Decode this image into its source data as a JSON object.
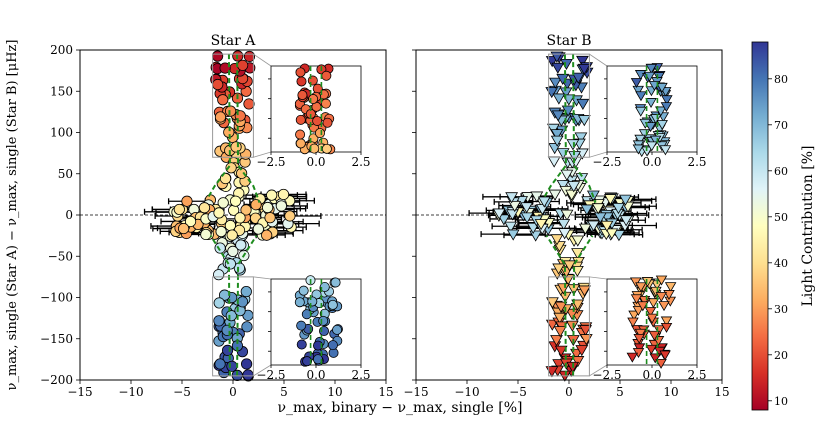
{
  "chart_data": [
    {
      "type": "scatter",
      "title": "Star A",
      "marker": "circle",
      "xlabel": "ν_max, binary − ν_max, single [%]",
      "ylabel": "ν_max, single (Star A) − ν_max, single (Star B) [μHz]",
      "xlim": [
        -15,
        15
      ],
      "ylim": [
        -200,
        200
      ],
      "xticks": [
        "−15",
        "−10",
        "−5",
        "0",
        "5",
        "10",
        "15"
      ],
      "yticks": [
        "200",
        "150",
        "100",
        "50",
        "0",
        "−50",
        "−100",
        "−150",
        "−200"
      ],
      "reference_line_y": 0,
      "columns": {
        "y_min": -195,
        "y_max": 195,
        "x_spread": 1.2,
        "light_at_top": 10,
        "light_at_bottom": 88
      },
      "horizontal_band": {
        "y_range": [
          -25,
          25
        ],
        "x_range": [
          -11,
          10.5
        ],
        "light_range": [
          30,
          55
        ]
      },
      "inset_top": {
        "y_range": [
          80,
          175
        ],
        "xlim": [
          -2.5,
          2.5
        ],
        "xticks": [
          "−2.5",
          "0.0",
          "2.5"
        ]
      },
      "inset_bottom": {
        "y_range": [
          -190,
          -80
        ],
        "xlim": [
          -2.5,
          2.5
        ],
        "xticks": [
          "−2.5",
          "0.0",
          "2.5"
        ]
      }
    },
    {
      "type": "scatter",
      "title": "Star B",
      "marker": "triangle-down",
      "xlabel": "ν_max, binary − ν_max, single [%]",
      "xlim": [
        -15,
        15
      ],
      "ylim": [
        -200,
        200
      ],
      "xticks": [
        "−15",
        "−10",
        "−5",
        "0",
        "5",
        "10",
        "15"
      ],
      "reference_line_y": 0,
      "columns": {
        "y_min": -195,
        "y_max": 195,
        "x_spread": 1.3,
        "light_at_top": 85,
        "light_at_bottom": 15
      },
      "horizontal_band": {
        "y_range": [
          -25,
          25
        ],
        "x_range": [
          -12.5,
          11
        ],
        "light_range": [
          45,
          70
        ]
      },
      "inset_top": {
        "y_range": [
          80,
          175
        ],
        "xlim": [
          -2.5,
          2.5
        ],
        "xticks": [
          "−2.5",
          "0.0",
          "2.5"
        ]
      },
      "inset_bottom": {
        "y_range": [
          -190,
          -80
        ],
        "xlim": [
          -2.5,
          2.5
        ],
        "xticks": [
          "−2.5",
          "0.0",
          "2.5"
        ]
      }
    }
  ],
  "colorbar": {
    "label": "Light Contribution [%]",
    "range": [
      8,
      88
    ],
    "ticks": [
      "10",
      "20",
      "30",
      "40",
      "50",
      "60",
      "70",
      "80"
    ],
    "colormap": [
      "#a50026",
      "#d73027",
      "#f46d43",
      "#fdae61",
      "#fee090",
      "#ffffbf",
      "#e0f3f8",
      "#abd9e9",
      "#74add1",
      "#4575b4",
      "#313695"
    ]
  },
  "styles": {
    "trend_color": "#1e8c1e",
    "edge_color": "#000000",
    "box_color": "#999999"
  }
}
